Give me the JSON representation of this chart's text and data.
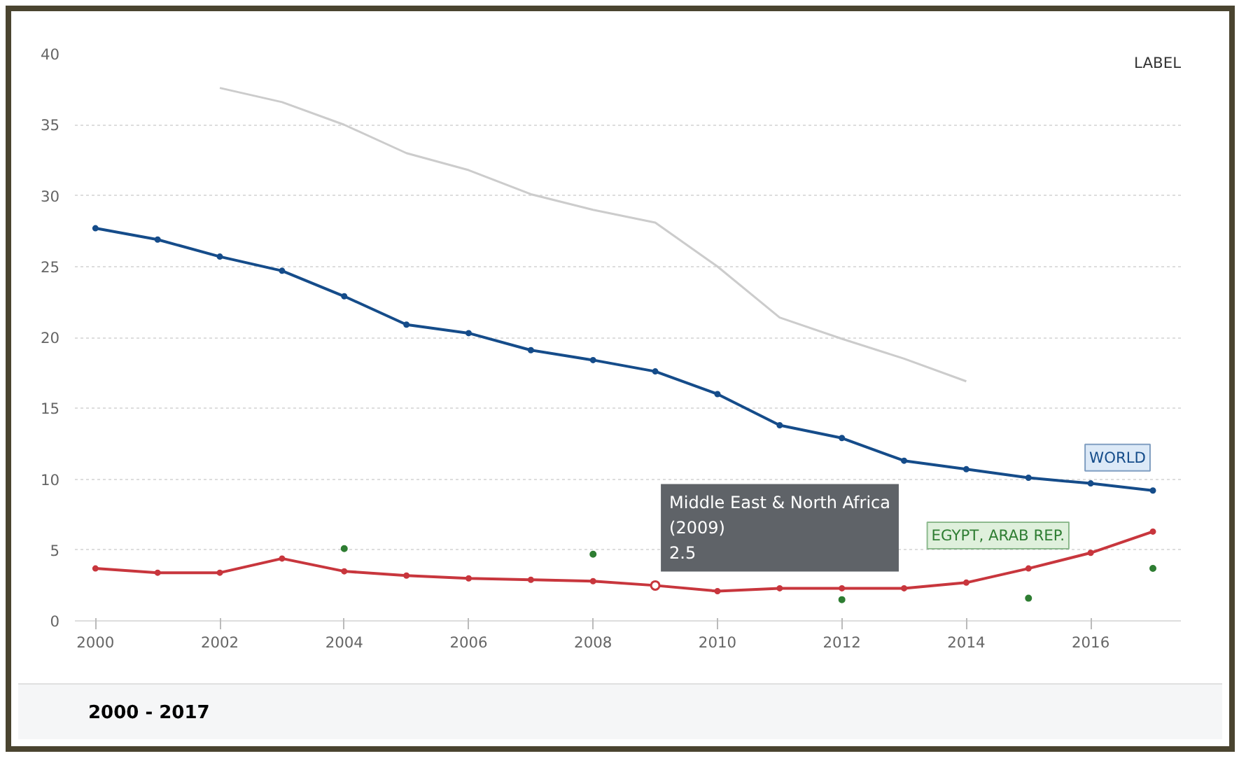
{
  "chart_data": {
    "type": "line",
    "x": [
      2000,
      2001,
      2002,
      2003,
      2004,
      2005,
      2006,
      2007,
      2008,
      2009,
      2010,
      2011,
      2012,
      2013,
      2014,
      2015,
      2016,
      2017
    ],
    "series": [
      {
        "color": "#cccccc",
        "marker": "none",
        "values": [
          null,
          null,
          37.6,
          36.6,
          35.0,
          33.0,
          31.8,
          30.1,
          29.0,
          28.1,
          25.0,
          21.4,
          19.9,
          18.5,
          16.9,
          null,
          null,
          null
        ]
      },
      {
        "name": "WORLD",
        "color": "#154c8a",
        "marker": "circle",
        "values": [
          27.7,
          26.9,
          25.7,
          24.7,
          22.9,
          20.9,
          20.3,
          19.1,
          18.4,
          17.6,
          16.0,
          13.8,
          12.9,
          11.3,
          10.7,
          10.1,
          9.7,
          9.2
        ]
      },
      {
        "color": "#c8363d",
        "marker": "circle",
        "values": [
          3.7,
          3.4,
          3.4,
          4.4,
          3.5,
          3.2,
          3.0,
          2.9,
          2.8,
          2.5,
          2.1,
          2.3,
          2.3,
          2.3,
          2.7,
          3.7,
          4.8,
          6.3
        ]
      },
      {
        "name": "EGYPT, ARAB REP.",
        "type": "scatter",
        "color": "#2e7d32",
        "marker": "circle",
        "values": [
          null,
          null,
          null,
          null,
          5.1,
          null,
          null,
          null,
          4.7,
          null,
          null,
          null,
          1.5,
          null,
          null,
          1.6,
          null,
          3.7
        ]
      }
    ],
    "xlim": [
      1999.67,
      2017.45
    ],
    "ylim": [
      0,
      40
    ],
    "xticks": [
      2000,
      2002,
      2004,
      2006,
      2008,
      2010,
      2012,
      2014,
      2016
    ],
    "yticks": [
      0,
      5,
      10,
      15,
      20,
      25,
      30,
      35,
      40
    ],
    "grid": "y",
    "legend": false,
    "line_style": "solid",
    "annotations": [
      "LABEL",
      {
        "text": "Middle East & North Africa\n(2009)\n2.5",
        "x": 2009,
        "y": 2.5
      },
      "2000 - 2017"
    ]
  }
}
